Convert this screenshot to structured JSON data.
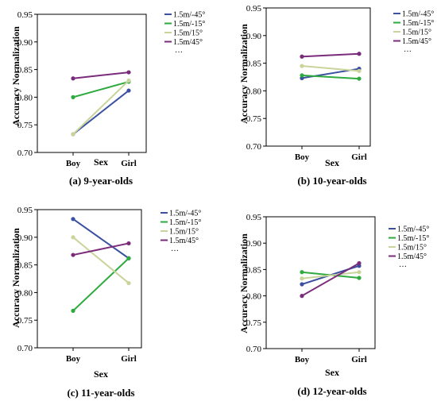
{
  "chart_data": [
    {
      "type": "line",
      "caption": "(a) 9-year-olds",
      "xlabel": "Sex",
      "ylabel": "Accuracy Normalization",
      "categories": [
        "Boy",
        "Girl"
      ],
      "ylim": [
        0.7,
        0.95
      ],
      "yticks": [
        "0.70",
        "0.75",
        "0.80",
        "0.85",
        "0.90",
        "0.95"
      ],
      "grid": false,
      "legend_position": "right",
      "legend_more": "…",
      "series": [
        {
          "name": "1.5m/-45°",
          "color": "#3b50a0",
          "values": [
            0.733,
            0.812
          ]
        },
        {
          "name": "1.5m/-15°",
          "color": "#2eaa3e",
          "values": [
            0.8,
            0.828
          ]
        },
        {
          "name": "1.5m/15°",
          "color": "#c8d49a",
          "values": [
            0.733,
            0.83
          ]
        },
        {
          "name": "1.5m/45°",
          "color": "#7a2b7a",
          "values": [
            0.834,
            0.845
          ]
        }
      ]
    },
    {
      "type": "line",
      "caption": "(b) 10-year-olds",
      "xlabel": "Sex",
      "ylabel": "Accuracy Normalization",
      "categories": [
        "Boy",
        "Girl"
      ],
      "ylim": [
        0.7,
        0.95
      ],
      "yticks": [
        "0.70",
        "0.75",
        "0.80",
        "0.85",
        "0.90",
        "0.95"
      ],
      "grid": false,
      "legend_position": "right",
      "legend_more": "…",
      "series": [
        {
          "name": "1.5m/-45°",
          "color": "#3b50a0",
          "values": [
            0.823,
            0.84
          ]
        },
        {
          "name": "1.5m/-15°",
          "color": "#2eaa3e",
          "values": [
            0.828,
            0.822
          ]
        },
        {
          "name": "1.5m/15°",
          "color": "#c8d49a",
          "values": [
            0.845,
            0.836
          ]
        },
        {
          "name": "1.5m/45°",
          "color": "#7a2b7a",
          "values": [
            0.862,
            0.867
          ]
        }
      ]
    },
    {
      "type": "line",
      "caption": "(c) 11-year-olds",
      "xlabel": "Sex",
      "ylabel": "Accuracy Normalization",
      "categories": [
        "Boy",
        "Girl"
      ],
      "ylim": [
        0.7,
        0.95
      ],
      "yticks": [
        "0.70",
        "0.75",
        "0.80",
        "0.85",
        "0.90",
        "0.95"
      ],
      "grid": false,
      "legend_position": "right",
      "legend_more": "…",
      "series": [
        {
          "name": "1.5m/-45°",
          "color": "#3b50a0",
          "values": [
            0.933,
            0.862
          ]
        },
        {
          "name": "1.5m/-15°",
          "color": "#2eaa3e",
          "values": [
            0.767,
            0.862
          ]
        },
        {
          "name": "1.5m/15°",
          "color": "#c8d49a",
          "values": [
            0.9,
            0.817
          ]
        },
        {
          "name": "1.5m/45°",
          "color": "#7a2b7a",
          "values": [
            0.868,
            0.889
          ]
        }
      ]
    },
    {
      "type": "line",
      "caption": "(d) 12-year-olds",
      "xlabel": "Sex",
      "ylabel": "Accuracy Normalization",
      "categories": [
        "Boy",
        "Girl"
      ],
      "ylim": [
        0.7,
        0.95
      ],
      "yticks": [
        "0.70",
        "0.75",
        "0.80",
        "0.85",
        "0.90",
        "0.95"
      ],
      "grid": false,
      "legend_position": "right",
      "legend_more": "…",
      "series": [
        {
          "name": "1.5m/-45°",
          "color": "#3b50a0",
          "values": [
            0.822,
            0.857
          ]
        },
        {
          "name": "1.5m/-15°",
          "color": "#2eaa3e",
          "values": [
            0.845,
            0.834
          ]
        },
        {
          "name": "1.5m/15°",
          "color": "#c8d49a",
          "values": [
            0.833,
            0.845
          ]
        },
        {
          "name": "1.5m/45°",
          "color": "#7a2b7a",
          "values": [
            0.8,
            0.862
          ]
        }
      ]
    }
  ]
}
